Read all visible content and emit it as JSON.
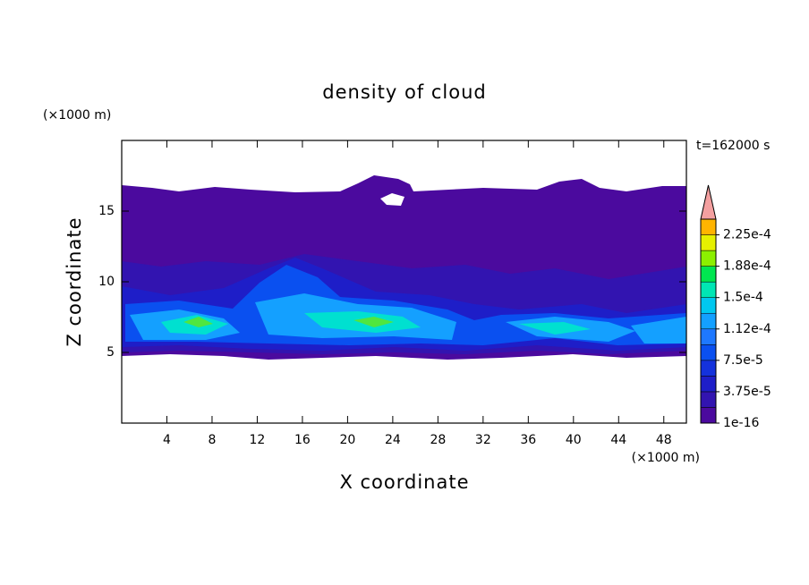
{
  "chart_data": {
    "type": "contour",
    "title": "density of cloud",
    "xlabel": "X coordinate",
    "ylabel": "Z coordinate",
    "x_unit": "(×1000 m)",
    "y_unit": "(×1000 m)",
    "annotation": "t=162000 s",
    "xlim": [
      0,
      50
    ],
    "ylim": [
      0,
      20
    ],
    "xticks": [
      4,
      8,
      12,
      16,
      20,
      24,
      28,
      32,
      36,
      40,
      44,
      48
    ],
    "yticks": [
      5,
      10,
      15
    ],
    "colorbar": {
      "ticks": [
        {
          "value": 1e-16,
          "label": "1e-16"
        },
        {
          "value": 3.75e-05,
          "label": "3.75e-5"
        },
        {
          "value": 7.5e-05,
          "label": "7.5e-5"
        },
        {
          "value": 0.000112,
          "label": "1.12e-4"
        },
        {
          "value": 0.00015,
          "label": "1.5e-4"
        },
        {
          "value": 0.000188,
          "label": "1.88e-4"
        },
        {
          "value": 0.000225,
          "label": "2.25e-4"
        }
      ],
      "colors": [
        "#4b0a9e",
        "#3214b0",
        "#1e1ec8",
        "#1432dc",
        "#0a50f0",
        "#1e78ff",
        "#14a0ff",
        "#00c8f0",
        "#00e6b4",
        "#00e650",
        "#8cf000",
        "#e6f000",
        "#ffb400"
      ],
      "extend_color": "#f4a0a0"
    }
  }
}
